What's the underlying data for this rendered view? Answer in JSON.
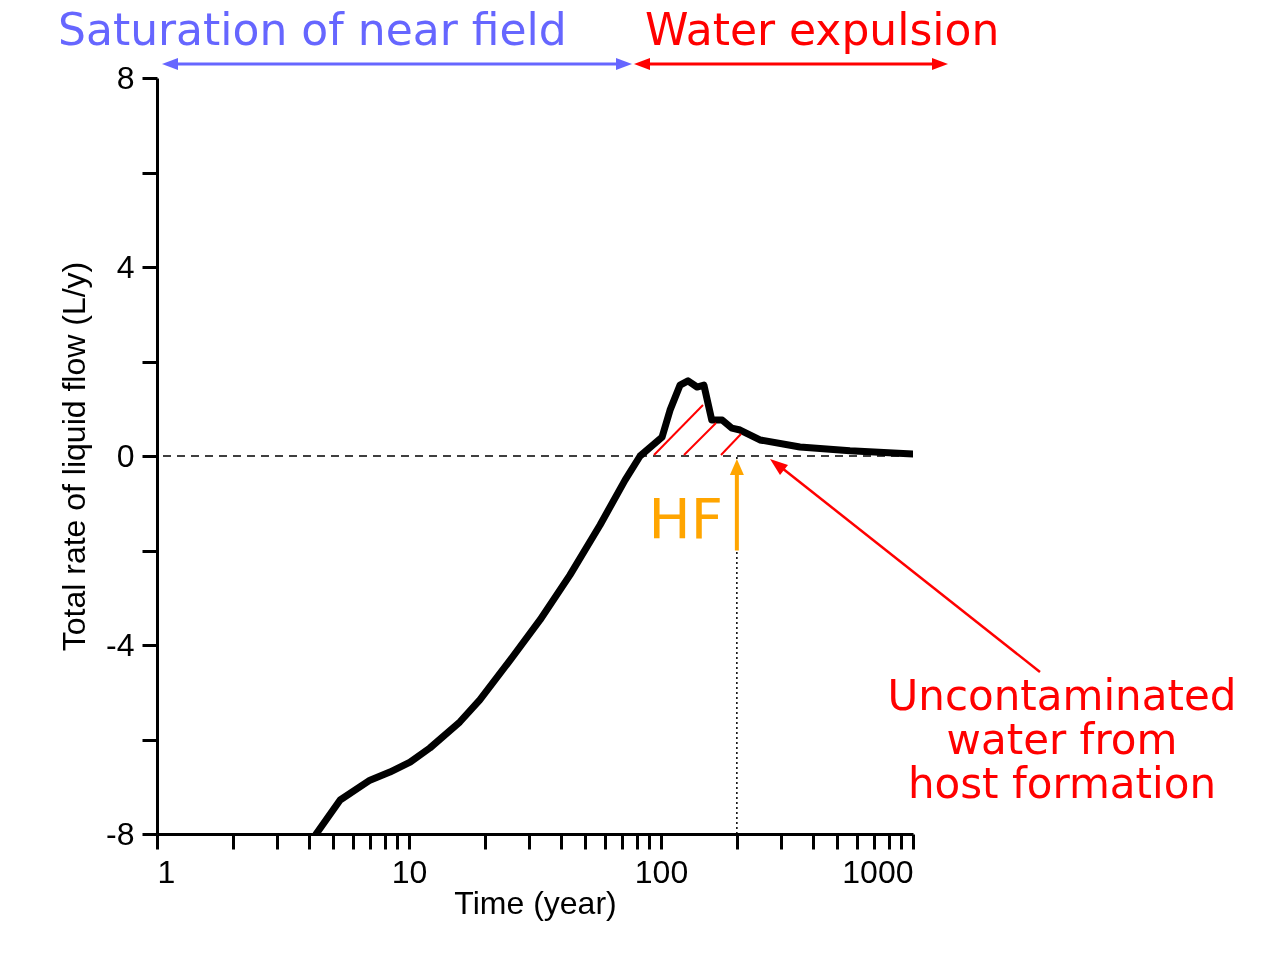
{
  "chart_data": {
    "type": "line",
    "xlabel": "Time (year)",
    "ylabel": "Total rate of liquid flow (L/y)",
    "log": "x",
    "xlim": [
      1,
      1000
    ],
    "xticks": [
      1,
      {
        "value": 2,
        "label": null
      },
      {
        "value": 3,
        "label": null
      },
      {
        "value": 4,
        "label": null
      },
      {
        "value": 5,
        "label": null
      },
      {
        "value": 6,
        "label": null
      },
      {
        "value": 7,
        "label": null
      },
      {
        "value": 8,
        "label": null
      },
      {
        "value": 9,
        "label": null
      },
      10,
      {
        "value": 20,
        "label": null
      },
      {
        "value": 30,
        "label": null
      },
      {
        "value": 40,
        "label": null
      },
      {
        "value": 50,
        "label": null
      },
      {
        "value": 60,
        "label": null
      },
      {
        "value": 70,
        "label": null
      },
      {
        "value": 80,
        "label": null
      },
      {
        "value": 90,
        "label": null
      },
      100,
      {
        "value": 200,
        "label": null
      },
      {
        "value": 300,
        "label": null
      },
      {
        "value": 400,
        "label": null
      },
      {
        "value": 500,
        "label": null
      },
      {
        "value": 600,
        "label": null
      },
      {
        "value": 700,
        "label": null
      },
      {
        "value": 800,
        "label": null
      },
      {
        "value": 900,
        "label": null
      },
      1000
    ],
    "ylim": [
      -8,
      8
    ],
    "yticks": [
      -8,
      {
        "value": -6,
        "label": null
      },
      -4,
      {
        "value": -2,
        "label": null
      },
      0,
      {
        "value": 2,
        "label": null
      },
      4,
      {
        "value": 6,
        "label": null
      },
      8
    ],
    "marker": "none",
    "line_style": "solid",
    "series": [
      {
        "color": "#000000",
        "x": [
          4.28,
          5.33,
          7.0,
          8.4,
          10.1,
          12.1,
          15.9,
          19.1,
          25.2,
          33.1,
          43.5,
          57.3,
          72,
          82.6,
          101,
          108.6,
          119,
          128,
          139,
          148,
          159,
          175,
          191,
          206,
          247,
          356,
          562,
          1000
        ],
        "values": [
          -8,
          -7.28,
          -6.86,
          -6.69,
          -6.48,
          -6.18,
          -5.63,
          -5.16,
          -4.32,
          -3.47,
          -2.52,
          -1.46,
          -0.51,
          0,
          0.4,
          0.97,
          1.5,
          1.59,
          1.46,
          1.5,
          0.76,
          0.76,
          0.59,
          0.55,
          0.34,
          0.19,
          0.11,
          0.04
        ]
      }
    ],
    "ref_lines": [
      {
        "axis": "y",
        "value": 0,
        "line_style": "dashed",
        "color": "#000000"
      },
      {
        "axis": "x",
        "value": 200,
        "line_style": "dotted",
        "color": "#000000"
      }
    ],
    "annotations": [
      "Saturation of near field",
      "Water expulsion",
      {
        "text": "HF",
        "x": 200,
        "y": -1.5
      },
      "Uncontaminated\nwater from\nhost formation"
    ]
  }
}
